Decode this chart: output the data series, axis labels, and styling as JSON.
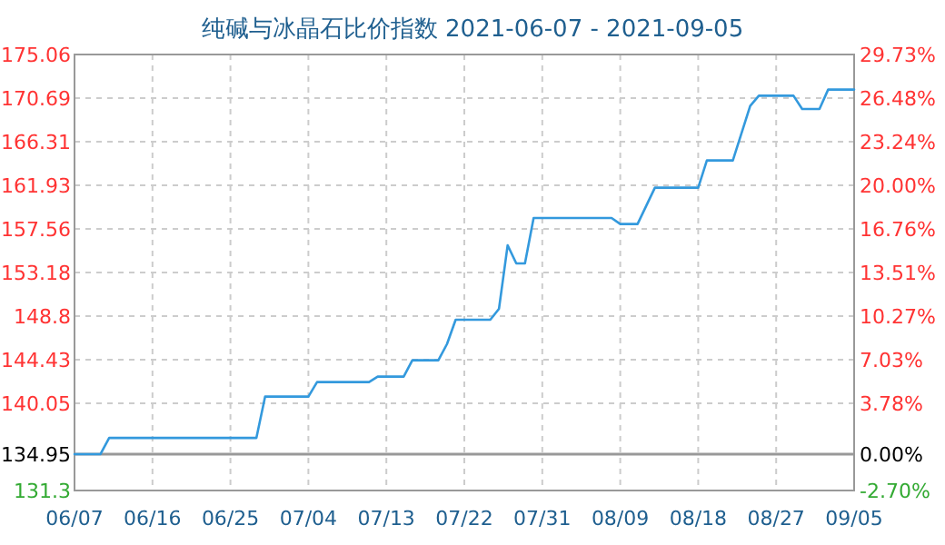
{
  "chart_data": {
    "type": "line",
    "title": "纯碱与冰晶石比价指数 2021-06-07 - 2021-09-05",
    "x": [
      "2021-06-07",
      "2021-06-10",
      "2021-06-11",
      "2021-06-28",
      "2021-06-29",
      "2021-07-04",
      "2021-07-05",
      "2021-07-11",
      "2021-07-12",
      "2021-07-15",
      "2021-07-16",
      "2021-07-19",
      "2021-07-20",
      "2021-07-21",
      "2021-07-25",
      "2021-07-26",
      "2021-07-27",
      "2021-07-28",
      "2021-07-29",
      "2021-07-30",
      "2021-08-08",
      "2021-08-09",
      "2021-08-11",
      "2021-08-13",
      "2021-08-18",
      "2021-08-19",
      "2021-08-22",
      "2021-08-24",
      "2021-08-25",
      "2021-08-29",
      "2021-08-30",
      "2021-09-01",
      "2021-09-02",
      "2021-09-05"
    ],
    "series": [
      {
        "color": "#3399dd",
        "values": [
          134.95,
          134.95,
          136.58,
          136.58,
          140.72,
          140.72,
          142.18,
          142.18,
          142.73,
          142.73,
          144.37,
          144.37,
          146.0,
          148.44,
          148.44,
          149.53,
          155.91,
          154.09,
          154.09,
          158.65,
          158.65,
          158.05,
          158.05,
          161.69,
          161.69,
          164.43,
          164.43,
          169.9,
          170.92,
          170.92,
          169.59,
          169.59,
          171.54,
          171.54
        ]
      }
    ],
    "xlim": [
      "2021-06-07",
      "2021-09-05"
    ],
    "xticks": [
      {
        "value": "2021-06-07",
        "label": "06/07"
      },
      {
        "value": "2021-06-16",
        "label": "06/16"
      },
      {
        "value": "2021-06-25",
        "label": "06/25"
      },
      {
        "value": "2021-07-04",
        "label": "07/04"
      },
      {
        "value": "2021-07-13",
        "label": "07/13"
      },
      {
        "value": "2021-07-22",
        "label": "07/22"
      },
      {
        "value": "2021-07-31",
        "label": "07/31"
      },
      {
        "value": "2021-08-09",
        "label": "08/09"
      },
      {
        "value": "2021-08-18",
        "label": "08/18"
      },
      {
        "value": "2021-08-27",
        "label": "08/27"
      },
      {
        "value": "2021-09-05",
        "label": "09/05"
      }
    ],
    "ylim": [
      131.3,
      175.06
    ],
    "yticks": [
      131.3,
      134.95,
      140.05,
      144.43,
      148.8,
      153.18,
      157.56,
      161.93,
      166.31,
      170.69,
      175.06
    ],
    "y2lim": [
      -2.7,
      29.73
    ],
    "y2ticks": [
      {
        "value": -2.7,
        "label": "-2.70%"
      },
      {
        "value": 0,
        "label": "0.00%"
      },
      {
        "value": 3.78,
        "label": "3.78%"
      },
      {
        "value": 7.03,
        "label": "7.03%"
      },
      {
        "value": 10.27,
        "label": "10.27%"
      },
      {
        "value": 13.51,
        "label": "13.51%"
      },
      {
        "value": 16.76,
        "label": "16.76%"
      },
      {
        "value": 20.0,
        "label": "20.00%"
      },
      {
        "value": 23.24,
        "label": "23.24%"
      },
      {
        "value": 26.48,
        "label": "26.48%"
      },
      {
        "value": 29.73,
        "label": "29.73%"
      }
    ],
    "ref_lines": [
      {
        "axis": "y",
        "value": 134.95,
        "color": "#999999"
      }
    ],
    "grid": true,
    "line_style": "solid",
    "marker": "none"
  }
}
